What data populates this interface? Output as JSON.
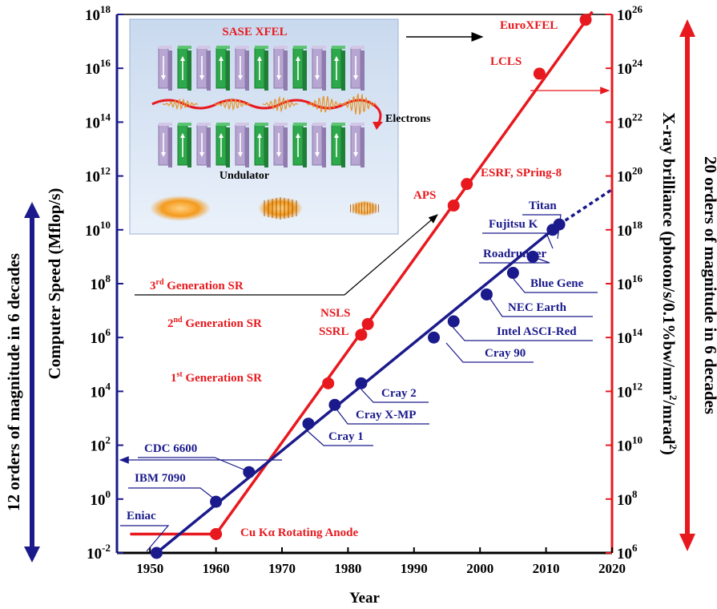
{
  "chart_data": {
    "type": "scatter",
    "xlabel": "Year",
    "xlim": [
      1945,
      2020
    ],
    "x_ticks": [
      "1950",
      "1960",
      "1970",
      "1980",
      "1990",
      "2000",
      "2010",
      "2020"
    ],
    "left_axis": {
      "label": "Computer Speed (Mflop/s)",
      "scale": "log",
      "ylim_exp": [
        -2,
        18
      ],
      "ticks": [
        {
          "base": "10",
          "exp": "18"
        },
        {
          "base": "10",
          "exp": "16"
        },
        {
          "base": "10",
          "exp": "14"
        },
        {
          "base": "10",
          "exp": "12"
        },
        {
          "base": "10",
          "exp": "10"
        },
        {
          "base": "10",
          "exp": "8"
        },
        {
          "base": "10",
          "exp": "6"
        },
        {
          "base": "10",
          "exp": "4"
        },
        {
          "base": "10",
          "exp": "2"
        },
        {
          "base": "10",
          "exp": "0"
        },
        {
          "base": "10",
          "exp": "-2"
        }
      ],
      "color": "#1a1a8c"
    },
    "right_axis": {
      "label_main": "X-ray brilliance (photon/s/0.1%bw/mm",
      "label_sup1": "2",
      "label_mid": "/mrad",
      "label_sup2": "2",
      "label_end": ")",
      "scale": "log",
      "ylim_exp": [
        6,
        26
      ],
      "ticks": [
        {
          "base": "10",
          "exp": "26"
        },
        {
          "base": "10",
          "exp": "24"
        },
        {
          "base": "10",
          "exp": "22"
        },
        {
          "base": "10",
          "exp": "20"
        },
        {
          "base": "10",
          "exp": "18"
        },
        {
          "base": "10",
          "exp": "16"
        },
        {
          "base": "10",
          "exp": "14"
        },
        {
          "base": "10",
          "exp": "12"
        },
        {
          "base": "10",
          "exp": "10"
        },
        {
          "base": "10",
          "exp": "8"
        },
        {
          "base": "10",
          "exp": "6"
        }
      ],
      "color": "#e8191e"
    },
    "series": [
      {
        "name": "Computer Speed",
        "color": "#1a1a8c",
        "points": [
          {
            "label": "Eniac",
            "x": 1951,
            "y_exp": -2
          },
          {
            "label": "IBM 7090",
            "x": 1960,
            "y_exp": -0.1
          },
          {
            "label": "CDC 6600",
            "x": 1965,
            "y_exp": 1
          },
          {
            "label": "Cray 1",
            "x": 1974,
            "y_exp": 2.8
          },
          {
            "label": "Cray X-MP",
            "x": 1978,
            "y_exp": 3.5
          },
          {
            "label": "Cray 2",
            "x": 1982,
            "y_exp": 4.3
          },
          {
            "label": "Cray 90",
            "x": 1993,
            "y_exp": 6
          },
          {
            "label": "Intel ASCI-Red",
            "x": 1996,
            "y_exp": 6.6
          },
          {
            "label": "NEC Earth",
            "x": 2001,
            "y_exp": 7.6
          },
          {
            "label": "Blue Gene",
            "x": 2005,
            "y_exp": 8.4
          },
          {
            "label": "Roadrunner",
            "x": 2008,
            "y_exp": 9
          },
          {
            "label": "Fujitsu K",
            "x": 2011,
            "y_exp": 10
          },
          {
            "label": "Titan",
            "x": 2012,
            "y_exp": 10.2
          }
        ]
      },
      {
        "name": "X-ray brilliance",
        "color": "#e8191e",
        "points": [
          {
            "label": "Cu Kα Rotating Anode",
            "x": 1960,
            "y_exp": 6.7
          },
          {
            "label": "1st Generation SR",
            "x": 1977,
            "y_exp": 12.3
          },
          {
            "label": "SSRL",
            "x": 1982,
            "y_exp": 14.1
          },
          {
            "label": "NSLS",
            "x": 1983,
            "y_exp": 14.5
          },
          {
            "label": "APS",
            "x": 1996,
            "y_exp": 18.9
          },
          {
            "label": "ESRF, SPring-8",
            "x": 1998,
            "y_exp": 19.7
          },
          {
            "label": "LCLS",
            "x": 2009,
            "y_exp": 23.8
          },
          {
            "label": "EuroXFEL",
            "x": 2016,
            "y_exp": 25.8
          }
        ]
      }
    ],
    "labels": {
      "eniac": "Eniac",
      "ibm": "IBM 7090",
      "cdc": "CDC 6600",
      "cray1": "Cray 1",
      "crayxmp": "Cray X-MP",
      "cray2": "Cray 2",
      "cray90": "Cray 90",
      "asci": "Intel ASCI-Red",
      "nec": "NEC Earth",
      "bluegene": "Blue Gene",
      "roadrunner": "Roadrunner",
      "fujitsu": "Fujitsu K",
      "titan": "Titan",
      "cu": "Cu Kα Rotating Anode",
      "nsls": "NSLS",
      "ssrl": "SSRL",
      "aps": "APS",
      "esrf": "ESRF, SPring-8",
      "lcls": "LCLS",
      "euroxfel": "EuroXFEL",
      "gen1_num": "1",
      "gen1_sup": "st",
      "gen1_rest": " Generation SR",
      "gen2_num": "2",
      "gen2_sup": "nd",
      "gen2_rest": " Generation SR",
      "gen3_num": "3",
      "gen3_sup": "rd",
      "gen3_rest": " Generation SR"
    },
    "inset": {
      "title": "SASE  XFEL",
      "electrons": "Electrons",
      "undulator": "Undulator"
    },
    "side_left": "12 orders of magnitude in 6 decades",
    "side_right": "20 orders of magnitude in 6 decades"
  }
}
